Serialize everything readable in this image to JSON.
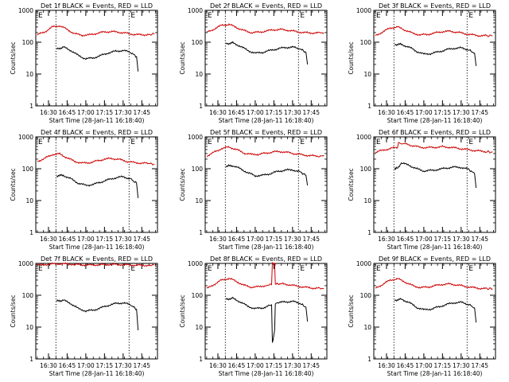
{
  "common": {
    "ylabel": "Counts/sec",
    "xlabel": "Start Time (28-Jan-11 16:18:40)",
    "x_tick_labels": [
      "16:30",
      "16:45",
      "17:00",
      "17:15",
      "17:30",
      "17:45"
    ],
    "y_tick_labels": [
      "1",
      "10",
      "100",
      "1000"
    ],
    "marker_label": "E",
    "series_colors": {
      "events": "#000000",
      "lld": "#cc0000"
    }
  },
  "chart_data": [
    {
      "type": "line",
      "title": "Det 1f BLACK = Events, RED = LLD",
      "xlim": [
        16.33,
        17.96
      ],
      "ylim": [
        1,
        1000
      ],
      "yscale": "log",
      "vlines": [
        16.6,
        17.58
      ],
      "series": [
        {
          "x": [
            16.61,
            16.7,
            16.8,
            16.9,
            17.0,
            17.1,
            17.2,
            17.3,
            17.4,
            17.5,
            17.6,
            17.68,
            17.7
          ],
          "values": [
            60,
            70,
            55,
            38,
            30,
            32,
            38,
            46,
            52,
            55,
            48,
            35,
            12
          ]
        },
        {
          "x": [
            16.35,
            16.45,
            16.55,
            16.65,
            16.75,
            16.85,
            16.95,
            17.05,
            17.15,
            17.25,
            17.35,
            17.45,
            17.55,
            17.65,
            17.75,
            17.85,
            17.92
          ],
          "values": [
            170,
            210,
            300,
            330,
            250,
            185,
            165,
            170,
            190,
            210,
            215,
            205,
            190,
            175,
            170,
            175,
            180
          ]
        }
      ]
    },
    {
      "type": "line",
      "title": "Det 2f BLACK = Events, RED = LLD",
      "xlim": [
        16.33,
        17.96
      ],
      "ylim": [
        1,
        1000
      ],
      "yscale": "log",
      "vlines": [
        16.6,
        17.58
      ],
      "series": [
        {
          "x": [
            16.61,
            16.7,
            16.8,
            16.9,
            17.0,
            17.1,
            17.2,
            17.3,
            17.4,
            17.5,
            17.6,
            17.68,
            17.7
          ],
          "values": [
            90,
            95,
            75,
            55,
            45,
            48,
            55,
            62,
            68,
            70,
            62,
            48,
            20
          ]
        },
        {
          "x": [
            16.35,
            16.45,
            16.55,
            16.65,
            16.75,
            16.85,
            16.95,
            17.05,
            17.15,
            17.25,
            17.35,
            17.45,
            17.55,
            17.65,
            17.75,
            17.85,
            17.92
          ],
          "values": [
            200,
            260,
            340,
            360,
            290,
            230,
            200,
            205,
            225,
            245,
            250,
            235,
            215,
            200,
            195,
            195,
            200
          ]
        }
      ]
    },
    {
      "type": "line",
      "title": "Det 3f BLACK = Events, RED = LLD",
      "xlim": [
        16.33,
        17.96
      ],
      "ylim": [
        1,
        1000
      ],
      "yscale": "log",
      "vlines": [
        16.6,
        17.58
      ],
      "series": [
        {
          "x": [
            16.61,
            16.7,
            16.8,
            16.9,
            17.0,
            17.1,
            17.2,
            17.3,
            17.4,
            17.5,
            17.6,
            17.68,
            17.7
          ],
          "values": [
            85,
            85,
            70,
            52,
            42,
            44,
            50,
            58,
            64,
            66,
            58,
            45,
            18
          ]
        },
        {
          "x": [
            16.35,
            16.45,
            16.55,
            16.65,
            16.75,
            16.85,
            16.95,
            17.05,
            17.15,
            17.25,
            17.35,
            17.45,
            17.55,
            17.65,
            17.75,
            17.85,
            17.92
          ],
          "values": [
            160,
            210,
            280,
            300,
            240,
            190,
            170,
            175,
            195,
            215,
            220,
            205,
            185,
            170,
            160,
            160,
            160
          ]
        }
      ]
    },
    {
      "type": "line",
      "title": "Det 4f BLACK = Events, RED = LLD",
      "xlim": [
        16.33,
        17.96
      ],
      "ylim": [
        1,
        1000
      ],
      "yscale": "log",
      "vlines": [
        16.6,
        17.58
      ],
      "series": [
        {
          "x": [
            16.61,
            16.7,
            16.8,
            16.9,
            17.0,
            17.1,
            17.2,
            17.3,
            17.4,
            17.5,
            17.6,
            17.68,
            17.7
          ],
          "values": [
            60,
            62,
            48,
            35,
            30,
            32,
            38,
            45,
            52,
            56,
            48,
            35,
            12
          ]
        },
        {
          "x": [
            16.35,
            16.45,
            16.55,
            16.65,
            16.75,
            16.85,
            16.95,
            17.05,
            17.15,
            17.25,
            17.35,
            17.45,
            17.55,
            17.65,
            17.75,
            17.85,
            17.92
          ],
          "values": [
            170,
            210,
            280,
            290,
            220,
            170,
            150,
            155,
            175,
            200,
            210,
            195,
            170,
            155,
            150,
            145,
            140
          ]
        }
      ]
    },
    {
      "type": "line",
      "title": "Det 5f BLACK = Events, RED = LLD",
      "xlim": [
        16.33,
        17.96
      ],
      "ylim": [
        1,
        1000
      ],
      "yscale": "log",
      "vlines": [
        16.6,
        17.58
      ],
      "series": [
        {
          "x": [
            16.61,
            16.7,
            16.8,
            16.9,
            17.0,
            17.1,
            17.2,
            17.3,
            17.4,
            17.5,
            17.6,
            17.68,
            17.7
          ],
          "values": [
            120,
            125,
            100,
            75,
            60,
            62,
            70,
            82,
            90,
            92,
            80,
            62,
            30
          ]
        },
        {
          "x": [
            16.35,
            16.45,
            16.55,
            16.65,
            16.75,
            16.85,
            16.95,
            17.05,
            17.15,
            17.25,
            17.35,
            17.45,
            17.55,
            17.65,
            17.75,
            17.85,
            17.92
          ],
          "values": [
            250,
            330,
            430,
            480,
            400,
            310,
            280,
            285,
            310,
            340,
            345,
            320,
            290,
            270,
            255,
            250,
            250
          ]
        }
      ]
    },
    {
      "type": "line",
      "title": "Det 6f BLACK = Events, RED = LLD",
      "xlim": [
        16.33,
        17.96
      ],
      "ylim": [
        1,
        1000
      ],
      "yscale": "log",
      "vlines": [
        16.6,
        17.58
      ],
      "series": [
        {
          "x": [
            16.61,
            16.66,
            16.7,
            16.8,
            16.9,
            17.0,
            17.1,
            17.2,
            17.3,
            17.4,
            17.5,
            17.6,
            17.68,
            17.7
          ],
          "values": [
            100,
            110,
            150,
            130,
            100,
            85,
            88,
            95,
            105,
            112,
            110,
            95,
            70,
            25
          ]
        },
        {
          "x": [
            16.35,
            16.45,
            16.55,
            16.65,
            16.66,
            16.75,
            16.85,
            16.95,
            17.05,
            17.15,
            17.25,
            17.35,
            17.45,
            17.55,
            17.65,
            17.75,
            17.85,
            17.92
          ],
          "values": [
            330,
            380,
            430,
            470,
            650,
            600,
            530,
            470,
            460,
            470,
            490,
            470,
            440,
            410,
            380,
            360,
            340,
            330
          ]
        }
      ]
    },
    {
      "type": "line",
      "title": "Det 7f BLACK = Events, RED = LLD",
      "xlim": [
        16.33,
        17.96
      ],
      "ylim": [
        1,
        1000
      ],
      "yscale": "log",
      "vlines": [
        16.6,
        17.58
      ],
      "series": [
        {
          "x": [
            16.61,
            16.7,
            16.8,
            16.9,
            17.0,
            17.1,
            17.2,
            17.3,
            17.4,
            17.5,
            17.6,
            17.68,
            17.7
          ],
          "values": [
            65,
            70,
            55,
            38,
            32,
            34,
            40,
            48,
            55,
            58,
            50,
            36,
            8
          ]
        },
        {
          "x": [
            16.35,
            16.45,
            16.55,
            16.65,
            16.75,
            16.85,
            16.95,
            17.05,
            17.15,
            17.25,
            17.35,
            17.45,
            17.55,
            17.65,
            17.75,
            17.85,
            17.92
          ],
          "values": [
            880,
            920,
            960,
            980,
            960,
            930,
            900,
            890,
            900,
            920,
            930,
            920,
            900,
            880,
            870,
            870,
            880
          ]
        }
      ]
    },
    {
      "type": "line",
      "title": "Det 8f BLACK = Events, RED = LLD",
      "xlim": [
        16.33,
        17.96
      ],
      "ylim": [
        1,
        1000
      ],
      "yscale": "log",
      "vlines": [
        16.6,
        17.58
      ],
      "series": [
        {
          "x": [
            16.61,
            16.7,
            16.8,
            16.9,
            17.0,
            17.1,
            17.2,
            17.22,
            17.23,
            17.26,
            17.27,
            17.3,
            17.4,
            17.5,
            17.6,
            17.68,
            17.7
          ],
          "values": [
            75,
            80,
            62,
            45,
            38,
            40,
            48,
            50,
            3,
            8,
            55,
            58,
            62,
            64,
            56,
            42,
            15
          ]
        },
        {
          "x": [
            16.35,
            16.45,
            16.55,
            16.65,
            16.75,
            16.85,
            16.95,
            17.05,
            17.15,
            17.22,
            17.23,
            17.26,
            17.27,
            17.35,
            17.45,
            17.55,
            17.65,
            17.75,
            17.85,
            17.92
          ],
          "values": [
            160,
            220,
            300,
            340,
            270,
            205,
            180,
            185,
            205,
            215,
            1000,
            1000,
            225,
            230,
            215,
            195,
            180,
            170,
            165,
            165
          ]
        }
      ]
    },
    {
      "type": "line",
      "title": "Det 9f BLACK = Events, RED = LLD",
      "xlim": [
        16.33,
        17.96
      ],
      "ylim": [
        1,
        1000
      ],
      "yscale": "log",
      "vlines": [
        16.6,
        17.58
      ],
      "series": [
        {
          "x": [
            16.61,
            16.7,
            16.8,
            16.9,
            17.0,
            17.1,
            17.2,
            17.3,
            17.4,
            17.5,
            17.6,
            17.68,
            17.7
          ],
          "values": [
            70,
            75,
            60,
            42,
            35,
            37,
            43,
            51,
            58,
            60,
            52,
            40,
            14
          ]
        },
        {
          "x": [
            16.35,
            16.45,
            16.55,
            16.65,
            16.75,
            16.85,
            16.95,
            17.05,
            17.15,
            17.25,
            17.35,
            17.45,
            17.55,
            17.65,
            17.75,
            17.85,
            17.92
          ],
          "values": [
            165,
            220,
            300,
            330,
            260,
            200,
            175,
            180,
            200,
            220,
            225,
            210,
            190,
            175,
            165,
            160,
            160
          ]
        }
      ]
    }
  ]
}
